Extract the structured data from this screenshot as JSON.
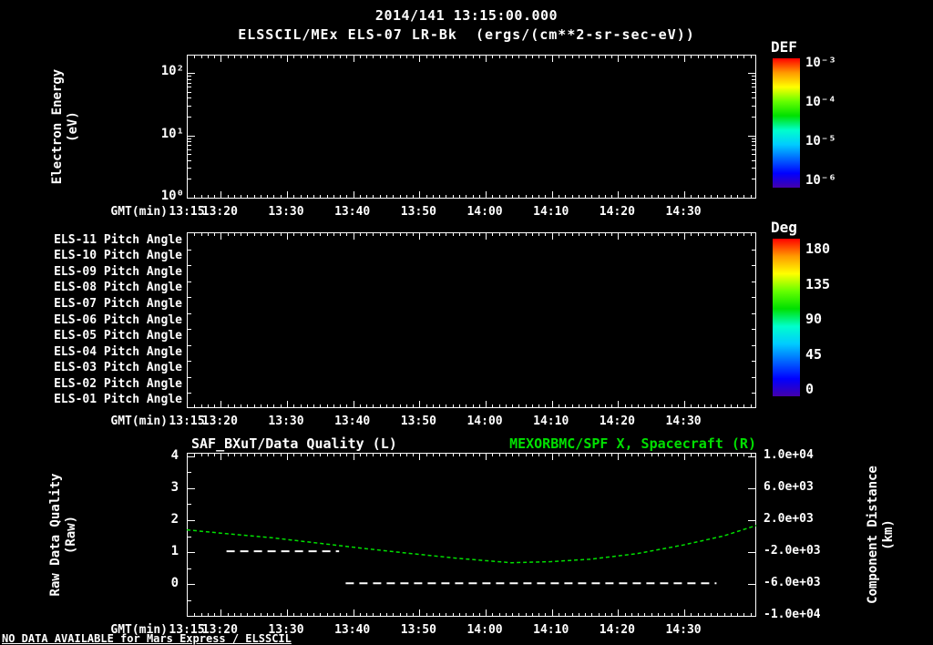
{
  "page": {
    "title": "2014/141 13:15:00.000",
    "subtitle": "ELSSCIL/MEx ELS-07 LR-Bk  (ergs/(cm**2-sr-sec-eV))",
    "footer_note": "NO DATA AVAILABLE for Mars Express / ELSSCIL"
  },
  "colors": {
    "background": "#000000",
    "text": "#ffffff",
    "green": "#00e000",
    "colorbar_gradient": [
      "#ff0000",
      "#ff9900",
      "#ffff00",
      "#66ff00",
      "#00e000",
      "#00ffcc",
      "#00ccff",
      "#0066ff",
      "#0000ff",
      "#4400aa"
    ]
  },
  "time_axis": {
    "label": "GMT(min)",
    "start_minutes": 0,
    "end_minutes": 86,
    "start_label": "13:15",
    "minor_tick_step_minutes": 1,
    "major_ticks": [
      {
        "t": 0,
        "label": "13:15"
      },
      {
        "t": 5,
        "label": "13:20"
      },
      {
        "t": 15,
        "label": "13:30"
      },
      {
        "t": 25,
        "label": "13:40"
      },
      {
        "t": 35,
        "label": "13:50"
      },
      {
        "t": 45,
        "label": "14:00"
      },
      {
        "t": 55,
        "label": "14:10"
      },
      {
        "t": 65,
        "label": "14:20"
      },
      {
        "t": 75,
        "label": "14:30"
      }
    ]
  },
  "chart_data": [
    {
      "type": "heatmap",
      "name": "electron-energy-spectrogram",
      "title": "2014/141 13:15:00.000",
      "subtitle": "ELSSCIL/MEx ELS-07 LR-Bk  (ergs/(cm**2-sr-sec-eV))",
      "xlabel": "GMT(min)",
      "ylabel_lines": [
        "Electron Energy",
        "(eV)"
      ],
      "y_scale": "log",
      "y_log_range": [
        -0.03,
        2.28
      ],
      "y_ticks": [
        {
          "value": 1,
          "label": "10⁰"
        },
        {
          "value": 10,
          "label": "10¹"
        },
        {
          "value": 100,
          "label": "10²"
        }
      ],
      "colorbar": {
        "title": "DEF",
        "tick_labels": [
          "10⁻³",
          "10⁻⁴",
          "10⁻⁵",
          "10⁻⁶"
        ]
      },
      "values": []
    },
    {
      "type": "heatmap",
      "name": "pitch-angle-panels",
      "xlabel": "GMT(min)",
      "row_labels": [
        "ELS-11 Pitch Angle",
        "ELS-10 Pitch Angle",
        "ELS-09 Pitch Angle",
        "ELS-08 Pitch Angle",
        "ELS-07 Pitch Angle",
        "ELS-06 Pitch Angle",
        "ELS-05 Pitch Angle",
        "ELS-04 Pitch Angle",
        "ELS-03 Pitch Angle",
        "ELS-02 Pitch Angle",
        "ELS-01 Pitch Angle"
      ],
      "colorbar": {
        "title": "Deg",
        "tick_labels": [
          "180",
          "135",
          "90",
          "45",
          "0"
        ]
      },
      "values": []
    },
    {
      "type": "line",
      "name": "quality-and-distance",
      "title_left": "SAF_BXuT/Data Quality (L)",
      "title_right": "MEXORBMC/SPF X, Spacecraft (R)",
      "xlabel": "GMT(min)",
      "ylabel_left_lines": [
        "Raw Data Quality",
        "(Raw)"
      ],
      "ylabel_right_lines": [
        "Component Distance",
        "(km)"
      ],
      "left_axis": {
        "range": [
          -1.05,
          4.08
        ],
        "ticks": [
          0,
          1,
          2,
          3,
          4
        ]
      },
      "right_axis": {
        "to_left_scale": 0.00025,
        "to_left_offset": 1.5,
        "ticks": [
          {
            "value": 10000,
            "label": "1.0e+04"
          },
          {
            "value": 6000,
            "label": "6.0e+03"
          },
          {
            "value": 2000,
            "label": "2.0e+03"
          },
          {
            "value": -2000,
            "label": "-2.0e+03"
          },
          {
            "value": -6000,
            "label": "-6.0e+03"
          },
          {
            "value": -10000,
            "label": "-1.0e+04"
          }
        ]
      },
      "series": [
        {
          "name": "MEXORBMC/SPF X Spacecraft",
          "axis": "right",
          "color": "#00e000",
          "line_style": "dashed",
          "points_t_minutes": [
            0,
            6,
            13,
            20,
            27,
            34,
            41,
            49,
            55,
            61,
            68,
            75,
            81,
            86
          ],
          "points_km": [
            670,
            200,
            -330,
            -1000,
            -1670,
            -2300,
            -2890,
            -3440,
            -3300,
            -3000,
            -2300,
            -1220,
            -100,
            1220
          ]
        },
        {
          "name": "SAF_BXuT Data Quality",
          "axis": "left",
          "color": "#ffffff",
          "line_style": "dashed",
          "segments": [
            {
              "value": 1,
              "t_start": 6,
              "t_end": 23
            },
            {
              "value": 0,
              "t_start": 24,
              "t_end": 80
            }
          ]
        }
      ]
    }
  ]
}
